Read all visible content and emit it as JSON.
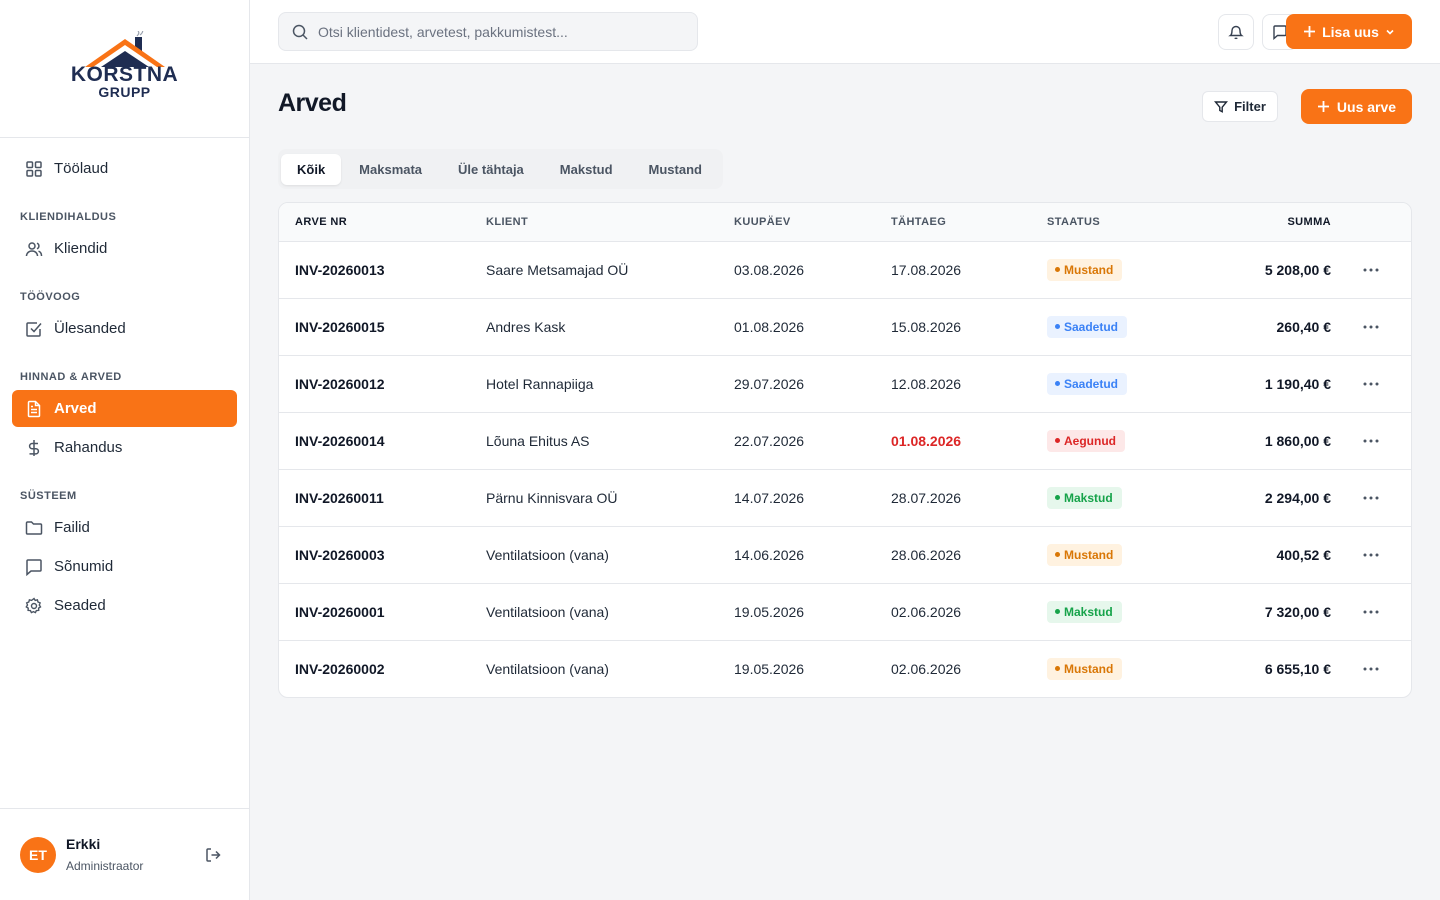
{
  "brand": {
    "line1": "KORSTNA",
    "line2": "GRUPP"
  },
  "sidebar": {
    "items": [
      {
        "type": "item",
        "label": "Töölaud",
        "icon": "dashboard-icon",
        "active": false
      },
      {
        "type": "section",
        "label": "KLIENDIHALDUS"
      },
      {
        "type": "item",
        "label": "Kliendid",
        "icon": "users-icon",
        "active": false
      },
      {
        "type": "section",
        "label": "TÖÖVOOG"
      },
      {
        "type": "item",
        "label": "Ülesanded",
        "icon": "checkbox-icon",
        "active": false
      },
      {
        "type": "section",
        "label": "HINNAD & ARVED"
      },
      {
        "type": "item",
        "label": "Arved",
        "icon": "document-icon",
        "active": true
      },
      {
        "type": "item",
        "label": "Rahandus",
        "icon": "dollar-icon",
        "active": false
      },
      {
        "type": "section",
        "label": "SÜSTEEM"
      },
      {
        "type": "item",
        "label": "Failid",
        "icon": "folder-icon",
        "active": false
      },
      {
        "type": "item",
        "label": "Sõnumid",
        "icon": "message-icon",
        "active": false
      },
      {
        "type": "item",
        "label": "Seaded",
        "icon": "gear-icon",
        "active": false
      }
    ]
  },
  "user": {
    "initials": "ET",
    "name": "Erkki",
    "role": "Administraator"
  },
  "topbar": {
    "search_placeholder": "Otsi klientidest, arvetest, pakkumistest...",
    "add_new_label": "Lisa uus"
  },
  "page": {
    "title": "Arved",
    "filter_label": "Filter",
    "new_invoice_label": "Uus arve",
    "tabs": [
      {
        "label": "Kõik",
        "active": true
      },
      {
        "label": "Maksmata",
        "active": false
      },
      {
        "label": "Üle tähtaja",
        "active": false
      },
      {
        "label": "Makstud",
        "active": false
      },
      {
        "label": "Mustand",
        "active": false
      }
    ]
  },
  "table": {
    "columns": [
      "ARVE NR",
      "KLIENT",
      "KUUPÄEV",
      "TÄHTAEG",
      "STAATUS",
      "SUMMA"
    ],
    "rows": [
      {
        "nr": "INV-20260013",
        "client": "Saare Metsamajad OÜ",
        "date": "03.08.2026",
        "due": "17.08.2026",
        "overdue": false,
        "status": "Mustand",
        "status_kind": "draft",
        "sum": "5 208,00 €"
      },
      {
        "nr": "INV-20260015",
        "client": "Andres Kask",
        "date": "01.08.2026",
        "due": "15.08.2026",
        "overdue": false,
        "status": "Saadetud",
        "status_kind": "sent",
        "sum": "260,40 €"
      },
      {
        "nr": "INV-20260012",
        "client": "Hotel Rannapiiga",
        "date": "29.07.2026",
        "due": "12.08.2026",
        "overdue": false,
        "status": "Saadetud",
        "status_kind": "sent",
        "sum": "1 190,40 €"
      },
      {
        "nr": "INV-20260014",
        "client": "Lõuna Ehitus AS",
        "date": "22.07.2026",
        "due": "01.08.2026",
        "overdue": true,
        "status": "Aegunud",
        "status_kind": "overdue",
        "sum": "1 860,00 €"
      },
      {
        "nr": "INV-20260011",
        "client": "Pärnu Kinnisvara OÜ",
        "date": "14.07.2026",
        "due": "28.07.2026",
        "overdue": false,
        "status": "Makstud",
        "status_kind": "paid",
        "sum": "2 294,00 €"
      },
      {
        "nr": "INV-20260003",
        "client": "Ventilatsioon (vana)",
        "date": "14.06.2026",
        "due": "28.06.2026",
        "overdue": false,
        "status": "Mustand",
        "status_kind": "draft",
        "sum": "400,52 €"
      },
      {
        "nr": "INV-20260001",
        "client": "Ventilatsioon (vana)",
        "date": "19.05.2026",
        "due": "02.06.2026",
        "overdue": false,
        "status": "Makstud",
        "status_kind": "paid",
        "sum": "7 320,00 €"
      },
      {
        "nr": "INV-20260002",
        "client": "Ventilatsioon (vana)",
        "date": "19.05.2026",
        "due": "02.06.2026",
        "overdue": false,
        "status": "Mustand",
        "status_kind": "draft",
        "sum": "6 655,10 €"
      }
    ]
  },
  "colors": {
    "accent": "#f97316",
    "draft": "#d97706",
    "sent": "#3b82f6",
    "overdue": "#dc2626",
    "paid": "#16a34a"
  }
}
